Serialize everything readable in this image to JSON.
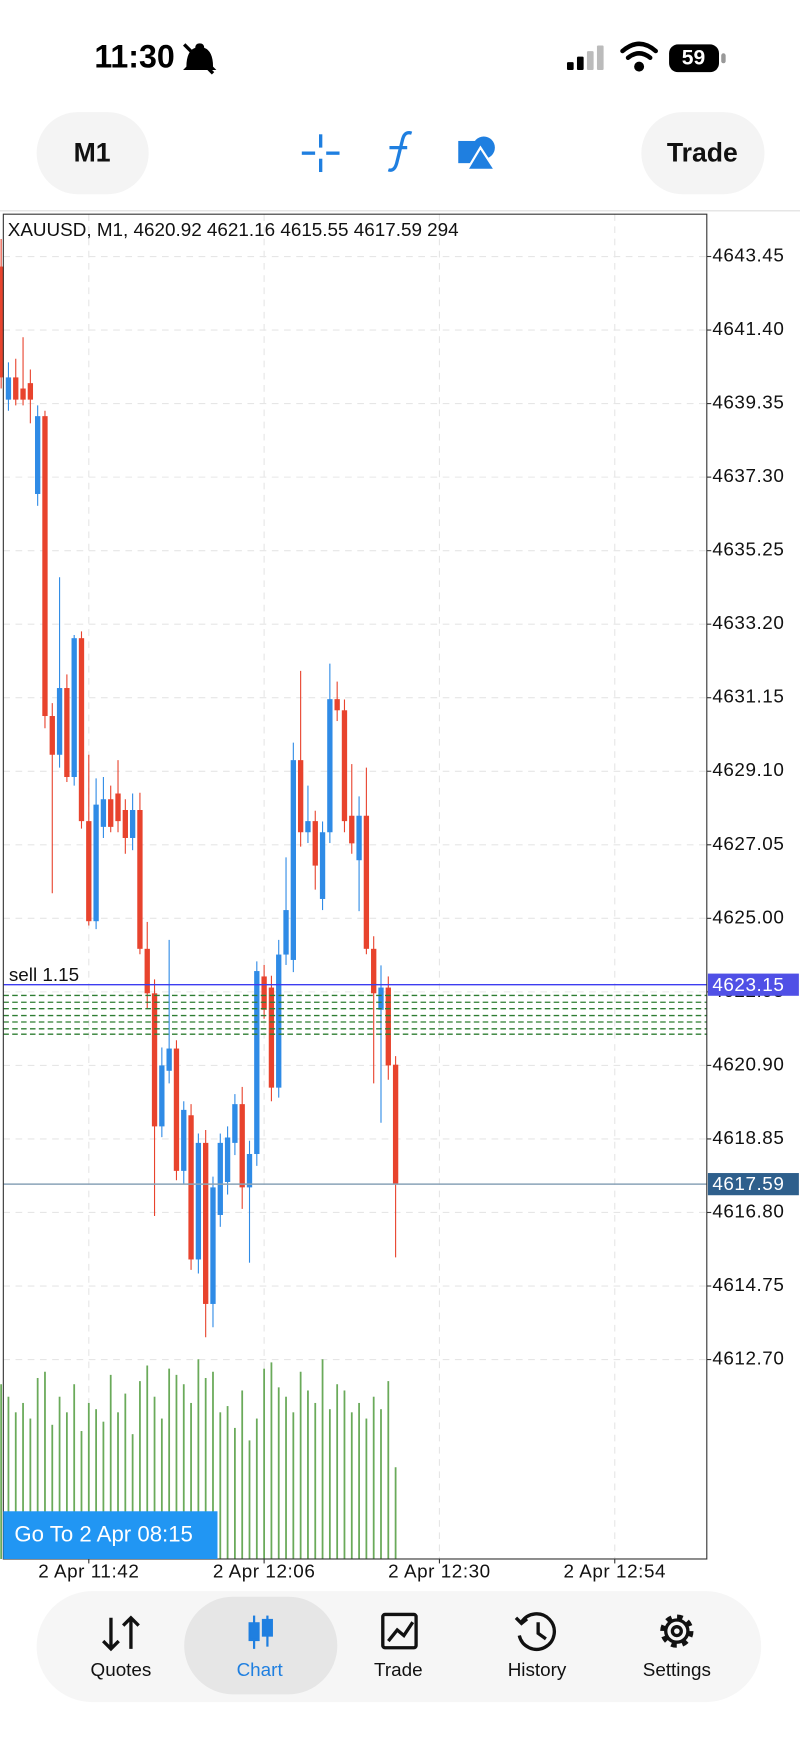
{
  "status_bar": {
    "time": "11:30",
    "battery": "59"
  },
  "toolbar": {
    "timeframe": "M1",
    "trade": "Trade"
  },
  "chart_data": {
    "type": "candlestick",
    "title": "XAUUSD, M1, 4620.92 4621.16 4615.55 4617.59 294",
    "open": [
      4643.17,
      4639.46,
      4640.08,
      4639.77,
      4639.92,
      4636.83,
      4639.0,
      4630.64,
      4629.56,
      4631.42,
      4628.94,
      4632.81,
      4627.71,
      4624.92,
      4627.55,
      4628.32,
      4628.48,
      4628.02,
      4627.24,
      4628.02,
      4624.15,
      4622.91,
      4619.2,
      4620.75,
      4621.37,
      4617.96,
      4619.51,
      4615.49,
      4618.74,
      4614.25,
      4616.73,
      4617.65,
      4618.74,
      4619.82,
      4617.5,
      4618.43,
      4623.38,
      4623.07,
      4620.28,
      4623.99,
      4623.84,
      4629.41,
      4627.4,
      4627.71,
      4625.54,
      4627.4,
      4631.11,
      4630.8,
      4627.86,
      4626.62,
      4627.86,
      4624.15,
      4622.45,
      4623.07,
      4620.92
    ],
    "high": [
      4643.94,
      4640.5,
      4640.6,
      4641.2,
      4640.3,
      4639.3,
      4639.15,
      4631.0,
      4634.51,
      4631.8,
      4632.9,
      4633.0,
      4629.56,
      4628.9,
      4628.94,
      4628.7,
      4629.41,
      4628.32,
      4628.48,
      4628.5,
      4624.9,
      4623.3,
      4621.4,
      4624.4,
      4621.6,
      4619.9,
      4619.82,
      4619.0,
      4619.1,
      4617.8,
      4619.0,
      4619.2,
      4620.1,
      4620.3,
      4618.8,
      4623.8,
      4623.7,
      4623.4,
      4624.4,
      4626.7,
      4629.9,
      4631.9,
      4628.7,
      4628.0,
      4627.7,
      4632.1,
      4631.6,
      4631.1,
      4629.3,
      4628.4,
      4629.2,
      4624.5,
      4623.69,
      4623.38,
      4621.16
    ],
    "low": [
      4639.77,
      4639.15,
      4639.3,
      4639.3,
      4638.8,
      4636.5,
      4630.3,
      4625.7,
      4629.2,
      4628.8,
      4628.7,
      4627.5,
      4624.8,
      4624.7,
      4627.24,
      4627.4,
      4627.4,
      4626.8,
      4626.9,
      4624.0,
      4622.5,
      4616.7,
      4618.9,
      4620.4,
      4617.7,
      4617.6,
      4615.2,
      4615.1,
      4613.32,
      4613.6,
      4616.4,
      4617.3,
      4618.4,
      4616.9,
      4615.4,
      4618.1,
      4622.2,
      4619.9,
      4620.0,
      4623.7,
      4623.5,
      4627.0,
      4627.1,
      4625.8,
      4625.23,
      4627.1,
      4630.5,
      4627.4,
      4626.8,
      4625.2,
      4624.0,
      4620.4,
      4619.3,
      4620.5,
      4615.55
    ],
    "close": [
      4640.08,
      4640.08,
      4639.46,
      4639.46,
      4639.46,
      4639.0,
      4630.64,
      4629.56,
      4631.42,
      4628.94,
      4632.81,
      4627.71,
      4624.92,
      4628.17,
      4628.32,
      4627.55,
      4627.71,
      4627.24,
      4628.02,
      4624.15,
      4622.91,
      4619.2,
      4620.9,
      4621.37,
      4617.96,
      4619.66,
      4615.49,
      4618.74,
      4614.25,
      4617.5,
      4618.74,
      4618.89,
      4619.82,
      4617.5,
      4618.43,
      4623.53,
      4622.45,
      4620.28,
      4623.99,
      4625.23,
      4629.41,
      4627.4,
      4627.71,
      4626.47,
      4627.4,
      4631.11,
      4630.8,
      4627.71,
      4627.09,
      4627.86,
      4624.15,
      4622.91,
      4623.07,
      4620.9,
      4617.59
    ],
    "volumes": [
      560,
      520,
      470,
      500,
      450,
      580,
      600,
      430,
      520,
      470,
      560,
      410,
      500,
      480,
      440,
      590,
      470,
      530,
      400,
      570,
      620,
      520,
      450,
      610,
      590,
      560,
      500,
      640,
      580,
      600,
      470,
      490,
      420,
      540,
      380,
      450,
      610,
      630,
      550,
      520,
      470,
      600,
      540,
      500,
      640,
      480,
      560,
      540,
      470,
      500,
      450,
      520,
      480,
      570,
      294
    ],
    "up_color": "#2f8be6",
    "down_color": "#e8432d",
    "volume_color": "#6aaa5a",
    "xlim": [
      0.3,
      96.6
    ],
    "xticks": [
      {
        "value": 12,
        "label": "2 Apr 11:42"
      },
      {
        "value": 36,
        "label": "2 Apr 12:06"
      },
      {
        "value": 60,
        "label": "2 Apr 12:30"
      },
      {
        "value": 84,
        "label": "2 Apr 12:54"
      }
    ],
    "ylim": [
      4607.14,
      4644.63
    ],
    "yticks": [
      4643.45,
      {
        "value": 4641.4,
        "label": "4641.40"
      },
      4639.35,
      {
        "value": 4637.3,
        "label": "4637.30"
      },
      4635.25,
      {
        "value": 4633.2,
        "label": "4633.20"
      },
      4631.15,
      {
        "value": 4629.1,
        "label": "4629.10"
      },
      4627.05,
      {
        "value": 4625,
        "label": "4625.00"
      },
      4622.95,
      {
        "value": 4620.9,
        "label": "4620.90"
      },
      4618.85,
      {
        "value": 4616.8,
        "label": "4616.80"
      },
      4614.75,
      {
        "value": 4612.7,
        "label": "4612.70"
      }
    ],
    "grid": true,
    "price_lines": [
      {
        "value": 4623.15,
        "color": "#3d3df0",
        "label_color": "#5050e6"
      },
      {
        "value": 4617.59,
        "color": "#8aa3b8",
        "label_color": "#2e5f8c"
      }
    ],
    "order_label": "sell 1.15",
    "order_levels": [
      4622.85,
      4622.66,
      4622.48,
      4622.29,
      4622.11,
      4621.92,
      4621.77
    ],
    "order_color": "#2e7d32",
    "goto_button": "Go To 2 Apr 08:15"
  },
  "nav": {
    "items": [
      "Quotes",
      "Chart",
      "Trade",
      "History",
      "Settings"
    ]
  }
}
